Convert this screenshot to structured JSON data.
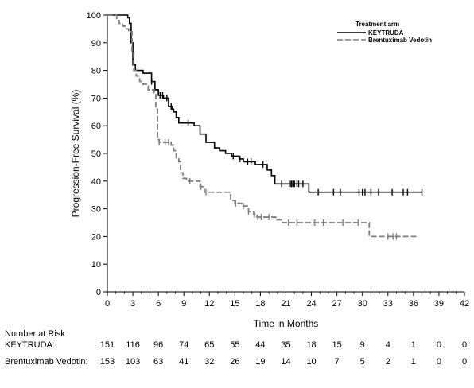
{
  "chart_data": {
    "type": "line",
    "title": "",
    "xlabel": "Time in Months",
    "ylabel": "Progression-Free Survival (%)",
    "xlim": [
      0,
      42
    ],
    "ylim": [
      0,
      100
    ],
    "x_ticks": [
      0,
      3,
      6,
      9,
      12,
      15,
      18,
      21,
      24,
      27,
      30,
      33,
      36,
      39,
      42
    ],
    "y_ticks": [
      0,
      10,
      20,
      30,
      40,
      50,
      60,
      70,
      80,
      90,
      100
    ],
    "grid": false,
    "legend": {
      "title": "Treatment arm",
      "placement": "top-right"
    },
    "series": [
      {
        "name": "KEYTRUDA",
        "color": "#000000",
        "style": "solid",
        "points": [
          [
            0,
            100
          ],
          [
            2.2,
            100
          ],
          [
            2.4,
            99
          ],
          [
            2.6,
            97
          ],
          [
            2.8,
            90
          ],
          [
            3.0,
            82
          ],
          [
            3.3,
            80
          ],
          [
            4.2,
            79
          ],
          [
            5.0,
            79
          ],
          [
            5.2,
            76
          ],
          [
            5.6,
            73
          ],
          [
            6.0,
            71
          ],
          [
            6.6,
            70
          ],
          [
            7.2,
            67
          ],
          [
            7.6,
            66
          ],
          [
            7.8,
            65
          ],
          [
            8.1,
            63
          ],
          [
            8.4,
            61
          ],
          [
            9.2,
            61
          ],
          [
            10.2,
            60
          ],
          [
            10.9,
            57
          ],
          [
            11.6,
            54
          ],
          [
            12.6,
            52
          ],
          [
            13.2,
            51
          ],
          [
            13.9,
            50
          ],
          [
            14.6,
            49
          ],
          [
            15.5,
            48
          ],
          [
            16.0,
            47
          ],
          [
            17.4,
            46
          ],
          [
            18.4,
            46
          ],
          [
            18.8,
            44
          ],
          [
            19.3,
            42
          ],
          [
            19.7,
            39
          ],
          [
            23.4,
            39
          ],
          [
            23.7,
            36
          ],
          [
            37.0,
            36
          ]
        ],
        "censored": [
          5.2,
          6.2,
          6.5,
          7.0,
          7.5,
          9.5,
          14.8,
          15.6,
          16.5,
          16.9,
          18.3,
          20.5,
          21.4,
          21.6,
          21.7,
          21.9,
          22.0,
          22.3,
          22.5,
          23.0,
          24.8,
          26.6,
          27.4,
          29.6,
          30.0,
          30.3,
          31.0,
          31.9,
          33.5,
          34.8,
          35.3,
          37.0
        ]
      },
      {
        "name": "Brentuximab Vedotin",
        "color": "#7f7f7f",
        "style": "dashed",
        "points": [
          [
            0,
            100
          ],
          [
            0.9,
            100
          ],
          [
            1.1,
            98
          ],
          [
            1.4,
            97
          ],
          [
            1.8,
            96
          ],
          [
            2.2,
            95
          ],
          [
            2.5,
            94
          ],
          [
            2.9,
            87
          ],
          [
            3.1,
            80
          ],
          [
            3.4,
            78
          ],
          [
            3.8,
            76
          ],
          [
            4.2,
            75
          ],
          [
            4.8,
            73
          ],
          [
            5.5,
            72
          ],
          [
            5.7,
            66
          ],
          [
            5.9,
            55
          ],
          [
            6.1,
            54
          ],
          [
            7.5,
            53
          ],
          [
            7.8,
            51
          ],
          [
            8.1,
            48
          ],
          [
            8.4,
            47
          ],
          [
            8.6,
            43
          ],
          [
            8.9,
            41
          ],
          [
            9.3,
            40
          ],
          [
            10.9,
            38
          ],
          [
            11.4,
            36
          ],
          [
            14.5,
            33
          ],
          [
            15.0,
            32
          ],
          [
            15.8,
            31
          ],
          [
            16.6,
            29
          ],
          [
            17.2,
            28
          ],
          [
            17.6,
            27
          ],
          [
            19.3,
            27
          ],
          [
            19.8,
            26
          ],
          [
            20.6,
            25
          ],
          [
            30.5,
            25
          ],
          [
            30.8,
            20
          ],
          [
            36.5,
            20
          ]
        ],
        "censored": [
          6.1,
          6.8,
          7.2,
          9.7,
          11.0,
          11.6,
          15.1,
          16.0,
          16.6,
          17.3,
          17.7,
          18.1,
          19.0,
          21.3,
          22.3,
          24.4,
          25.4,
          27.7,
          29.5,
          33.0,
          33.6,
          34.0
        ]
      }
    ],
    "risk_table": {
      "heading": "Number at Risk",
      "times": [
        0,
        3,
        6,
        9,
        12,
        15,
        18,
        21,
        24,
        27,
        30,
        33,
        36,
        39,
        42
      ],
      "rows": [
        {
          "label": "KEYTRUDA:",
          "values": [
            "151",
            "116",
            "96",
            "74",
            "65",
            "55",
            "44",
            "35",
            "18",
            "15",
            "9",
            "4",
            "1",
            "0",
            "0"
          ]
        },
        {
          "label": "Brentuximab Vedotin:",
          "values": [
            "153",
            "103",
            "63",
            "41",
            "32",
            "26",
            "19",
            "14",
            "10",
            "7",
            "5",
            "2",
            "1",
            "0",
            "0"
          ]
        }
      ]
    }
  }
}
